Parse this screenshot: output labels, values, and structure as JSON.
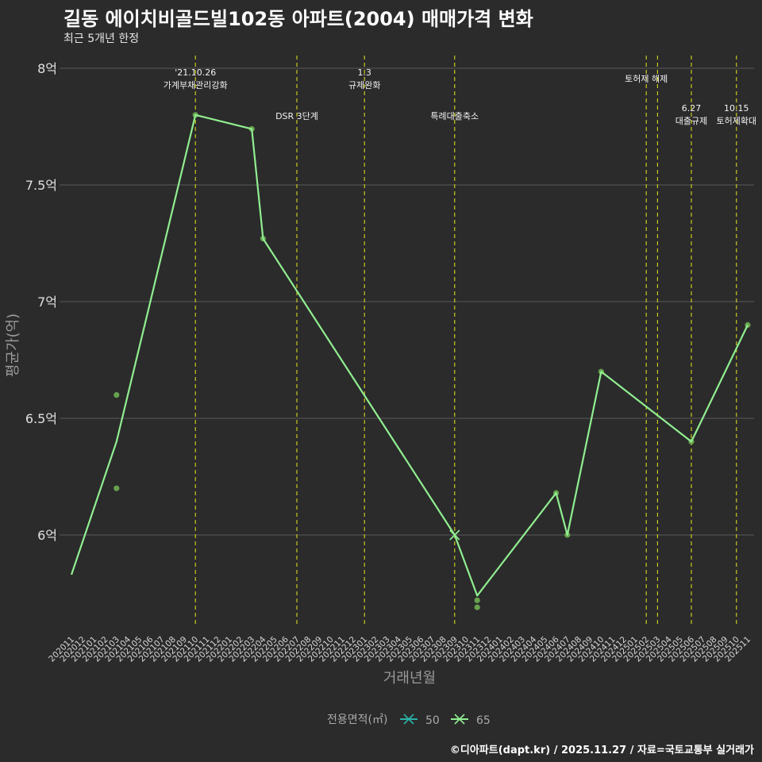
{
  "chart_data": {
    "type": "line",
    "title": "길동 에이치비골드빌102동 아파트(2004) 매매가격 변화",
    "subtitle": "최근 5개년 한정",
    "xlabel": "거래년월",
    "ylabel": "평균가(억)",
    "ylim": [
      5.6,
      8.1
    ],
    "y_ticks": [
      {
        "value": 6,
        "label": "6억"
      },
      {
        "value": 6.5,
        "label": "6.5억"
      },
      {
        "value": 7,
        "label": "7억"
      },
      {
        "value": 7.5,
        "label": "7.5억"
      },
      {
        "value": 8,
        "label": "8억"
      }
    ],
    "categories": [
      "202011",
      "202012",
      "202101",
      "202102",
      "202103",
      "202104",
      "202105",
      "202106",
      "202107",
      "202108",
      "202109",
      "202110",
      "202111",
      "202112",
      "202201",
      "202202",
      "202203",
      "202204",
      "202205",
      "202206",
      "202207",
      "202208",
      "202209",
      "202210",
      "202211",
      "202212",
      "202301",
      "202302",
      "202303",
      "202304",
      "202305",
      "202306",
      "202307",
      "202308",
      "202309",
      "202310",
      "202311",
      "202312",
      "202401",
      "202402",
      "202403",
      "202404",
      "202405",
      "202406",
      "202407",
      "202408",
      "202409",
      "202410",
      "202411",
      "202412",
      "202501",
      "202502",
      "202503",
      "202504",
      "202505",
      "202506",
      "202507",
      "202508",
      "202509",
      "202510",
      "202511"
    ],
    "series": [
      {
        "name": "50",
        "color": "#2ab1a6",
        "line_points": [],
        "scatter_points": []
      },
      {
        "name": "65",
        "color": "#90ee90",
        "line_points": [
          {
            "x": "202011",
            "y": 5.83
          },
          {
            "x": "202103",
            "y": 6.4
          },
          {
            "x": "202110",
            "y": 7.8
          },
          {
            "x": "202203",
            "y": 7.74
          },
          {
            "x": "202204",
            "y": 7.27
          },
          {
            "x": "202309",
            "y": 6.0
          },
          {
            "x": "202311",
            "y": 5.74
          },
          {
            "x": "202406",
            "y": 6.18
          },
          {
            "x": "202407",
            "y": 6.0
          },
          {
            "x": "202410",
            "y": 6.7
          },
          {
            "x": "202506",
            "y": 6.4
          },
          {
            "x": "202511",
            "y": 6.9
          }
        ],
        "scatter_points": [
          {
            "x": "202103",
            "y": 6.6
          },
          {
            "x": "202103",
            "y": 6.2
          },
          {
            "x": "202110",
            "y": 7.8
          },
          {
            "x": "202203",
            "y": 7.74
          },
          {
            "x": "202204",
            "y": 7.27
          },
          {
            "x": "202311",
            "y": 5.72
          },
          {
            "x": "202311",
            "y": 5.69
          },
          {
            "x": "202406",
            "y": 6.18
          },
          {
            "x": "202407",
            "y": 6.0
          },
          {
            "x": "202410",
            "y": 6.7
          },
          {
            "x": "202506",
            "y": 6.4
          },
          {
            "x": "202511",
            "y": 6.9
          }
        ]
      }
    ],
    "events": [
      {
        "x": "202110",
        "lines": [
          "'21.10.26",
          "가계부채관리강화"
        ],
        "level": 1
      },
      {
        "x": "202207",
        "lines": [
          "DSR 3단계"
        ],
        "level": 3
      },
      {
        "x": "202301",
        "lines": [
          "1.3",
          "규제완화"
        ],
        "level": 1
      },
      {
        "x": "202309",
        "lines": [
          "특례대출축소"
        ],
        "level": 3
      },
      {
        "x": "202502",
        "lines": [
          "토허제 해제"
        ],
        "level": 2
      },
      {
        "x": "202503",
        "lines": [],
        "level": 2
      },
      {
        "x": "202506",
        "lines": [
          "6.27",
          "대출규제"
        ],
        "level": 4
      },
      {
        "x": "202510",
        "lines": [
          "10.15",
          "토허제확대"
        ],
        "level": 4
      }
    ],
    "legend": {
      "title": "전용면적(㎡)",
      "position": "bottom"
    },
    "grid": true
  },
  "credit": "©디아파트(dapt.kr) / 2025.11.27 / 자료=국토교통부 실거래가"
}
